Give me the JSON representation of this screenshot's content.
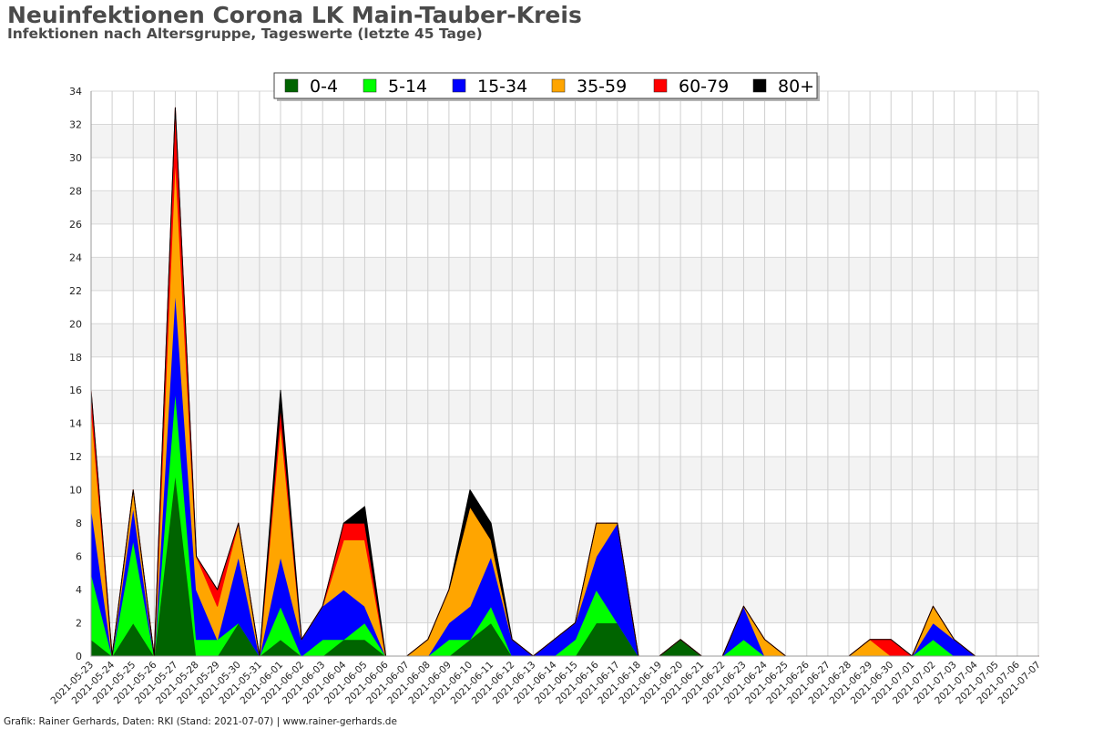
{
  "header": {
    "title": "Neuinfektionen Corona LK Main-Tauber-Kreis",
    "subtitle": "Infektionen nach Altersgruppe, Tageswerte (letzte 45 Tage)"
  },
  "footer": {
    "text": "Grafik: Rainer Gerhards, Daten: RKI (Stand: 2021-07-07) | www.rainer-gerhards.de"
  },
  "chart_data": {
    "type": "area",
    "stacked": true,
    "legend_position": "top-center",
    "grid": true,
    "ylim": [
      0,
      34
    ],
    "yticks": [
      0,
      2,
      4,
      6,
      8,
      10,
      12,
      14,
      16,
      18,
      20,
      22,
      24,
      26,
      28,
      30,
      32,
      34
    ],
    "x": [
      "2021-05-23",
      "2021-05-24",
      "2021-05-25",
      "2021-05-26",
      "2021-05-27",
      "2021-05-28",
      "2021-05-29",
      "2021-05-30",
      "2021-05-31",
      "2021-06-01",
      "2021-06-02",
      "2021-06-03",
      "2021-06-04",
      "2021-06-05",
      "2021-06-06",
      "2021-06-07",
      "2021-06-08",
      "2021-06-09",
      "2021-06-10",
      "2021-06-11",
      "2021-06-12",
      "2021-06-13",
      "2021-06-14",
      "2021-06-15",
      "2021-06-16",
      "2021-06-17",
      "2021-06-18",
      "2021-06-19",
      "2021-06-20",
      "2021-06-21",
      "2021-06-22",
      "2021-06-23",
      "2021-06-24",
      "2021-06-25",
      "2021-06-26",
      "2021-06-27",
      "2021-06-28",
      "2021-06-29",
      "2021-06-30",
      "2021-07-01",
      "2021-07-02",
      "2021-07-03",
      "2021-07-04",
      "2021-07-05",
      "2021-07-06",
      "2021-07-07"
    ],
    "series": [
      {
        "name": "0-4",
        "color": "#006400",
        "values": [
          1,
          0,
          2,
          0,
          11,
          0,
          0,
          2,
          0,
          1,
          0,
          0,
          1,
          1,
          0,
          0,
          0,
          0,
          1,
          2,
          0,
          0,
          0,
          0,
          2,
          2,
          0,
          0,
          1,
          0,
          0,
          0,
          0,
          0,
          0,
          0,
          0,
          0,
          0,
          0,
          0,
          0,
          0,
          0,
          0,
          0
        ]
      },
      {
        "name": "5-14",
        "color": "#00ff00",
        "values": [
          4,
          0,
          5,
          0,
          5,
          1,
          1,
          0,
          0,
          2,
          0,
          1,
          0,
          1,
          0,
          0,
          0,
          1,
          0,
          1,
          0,
          0,
          0,
          1,
          2,
          0,
          0,
          0,
          0,
          0,
          0,
          1,
          0,
          0,
          0,
          0,
          0,
          0,
          0,
          0,
          1,
          0,
          0,
          0,
          0,
          0
        ]
      },
      {
        "name": "15-34",
        "color": "#0000ff",
        "values": [
          4,
          0,
          2,
          0,
          6,
          3,
          0,
          4,
          0,
          3,
          1,
          2,
          3,
          1,
          0,
          0,
          0,
          1,
          2,
          3,
          1,
          0,
          1,
          1,
          2,
          6,
          0,
          0,
          0,
          0,
          0,
          2,
          0,
          0,
          0,
          0,
          0,
          0,
          0,
          0,
          1,
          1,
          0,
          0,
          0,
          0
        ]
      },
      {
        "name": "35-59",
        "color": "#ffa500",
        "values": [
          6,
          0,
          1,
          0,
          8,
          2,
          2,
          2,
          0,
          8,
          0,
          0,
          3,
          4,
          0,
          0,
          1,
          2,
          6,
          1,
          0,
          0,
          0,
          0,
          2,
          0,
          0,
          0,
          0,
          0,
          0,
          0,
          1,
          0,
          0,
          0,
          0,
          1,
          0,
          0,
          1,
          0,
          0,
          0,
          0,
          0
        ]
      },
      {
        "name": "60-79",
        "color": "#ff0000",
        "values": [
          1,
          0,
          0,
          0,
          3,
          0,
          1,
          0,
          0,
          1,
          0,
          0,
          1,
          1,
          0,
          0,
          0,
          0,
          0,
          0,
          0,
          0,
          0,
          0,
          0,
          0,
          0,
          0,
          0,
          0,
          0,
          0,
          0,
          0,
          0,
          0,
          0,
          0,
          1,
          0,
          0,
          0,
          0,
          0,
          0,
          0
        ]
      },
      {
        "name": "80+",
        "color": "#000000",
        "values": [
          0,
          0,
          0,
          0,
          0,
          0,
          0,
          0,
          0,
          1,
          0,
          0,
          0,
          1,
          0,
          0,
          0,
          0,
          1,
          1,
          0,
          0,
          0,
          0,
          0,
          0,
          0,
          0,
          0,
          0,
          0,
          0,
          0,
          0,
          0,
          0,
          0,
          0,
          0,
          0,
          0,
          0,
          0,
          0,
          0,
          0
        ]
      }
    ]
  }
}
